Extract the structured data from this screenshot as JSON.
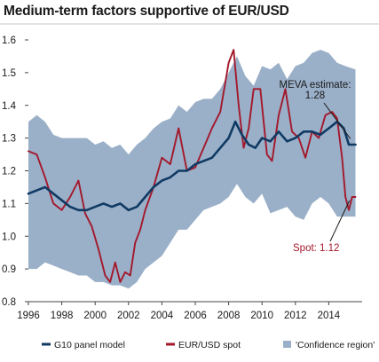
{
  "chart_data": {
    "type": "line",
    "title": "Medium-term factors supportive of EUR/USD",
    "xlabel": "",
    "ylabel": "",
    "xlim": [
      1996,
      2016
    ],
    "ylim": [
      0.8,
      1.6
    ],
    "x_ticks": [
      "1996",
      "1998",
      "2000",
      "2002",
      "2004",
      "2006",
      "2008",
      "2010",
      "2012",
      "2014"
    ],
    "y_ticks": [
      "0.8",
      "0.9",
      "1.0",
      "1.1",
      "1.2",
      "1.3",
      "1.4",
      "1.5",
      "1.6"
    ],
    "grid": false,
    "legend_position": "bottom",
    "colors": {
      "model": "#0f3a63",
      "spot": "#a3182b",
      "band": "#9aafc8"
    },
    "band": {
      "name": "'Confidence region'",
      "x": [
        1996.0,
        1996.5,
        1997.0,
        1997.5,
        1998.0,
        1998.5,
        1999.0,
        1999.5,
        2000.0,
        2000.5,
        2001.0,
        2001.5,
        2002.0,
        2002.5,
        2003.0,
        2003.5,
        2004.0,
        2004.5,
        2005.0,
        2005.5,
        2006.0,
        2006.5,
        2007.0,
        2007.5,
        2008.0,
        2008.5,
        2009.0,
        2009.5,
        2010.0,
        2010.5,
        2011.0,
        2011.5,
        2012.0,
        2012.5,
        2013.0,
        2013.5,
        2014.0,
        2014.5,
        2015.0,
        2015.6
      ],
      "upper": [
        1.35,
        1.37,
        1.35,
        1.31,
        1.3,
        1.3,
        1.3,
        1.3,
        1.28,
        1.29,
        1.27,
        1.28,
        1.25,
        1.28,
        1.3,
        1.33,
        1.35,
        1.36,
        1.4,
        1.38,
        1.41,
        1.42,
        1.42,
        1.45,
        1.5,
        1.55,
        1.49,
        1.46,
        1.52,
        1.51,
        1.53,
        1.48,
        1.52,
        1.53,
        1.56,
        1.57,
        1.56,
        1.53,
        1.52,
        1.51
      ],
      "lower": [
        0.9,
        0.9,
        0.92,
        0.91,
        0.9,
        0.89,
        0.88,
        0.88,
        0.86,
        0.86,
        0.85,
        0.85,
        0.84,
        0.86,
        0.9,
        0.92,
        0.94,
        0.98,
        1.02,
        1.02,
        1.05,
        1.08,
        1.09,
        1.1,
        1.12,
        1.16,
        1.12,
        1.1,
        1.13,
        1.07,
        1.08,
        1.09,
        1.06,
        1.05,
        1.1,
        1.12,
        1.1,
        1.06,
        1.06,
        1.06
      ]
    },
    "series": [
      {
        "name": "G10 panel model",
        "x": [
          1996.0,
          1996.5,
          1997.0,
          1997.5,
          1998.0,
          1998.5,
          1999.0,
          1999.5,
          2000.0,
          2000.5,
          2001.0,
          2001.5,
          2002.0,
          2002.5,
          2003.0,
          2003.5,
          2004.0,
          2004.5,
          2005.0,
          2005.5,
          2006.0,
          2006.5,
          2007.0,
          2007.5,
          2008.0,
          2008.4,
          2008.8,
          2009.2,
          2009.6,
          2010.0,
          2010.5,
          2011.0,
          2011.5,
          2012.0,
          2012.5,
          2013.0,
          2013.5,
          2014.0,
          2014.5,
          2014.9,
          2015.2,
          2015.6
        ],
        "values": [
          1.13,
          1.14,
          1.15,
          1.13,
          1.11,
          1.09,
          1.08,
          1.08,
          1.09,
          1.1,
          1.09,
          1.1,
          1.08,
          1.09,
          1.12,
          1.15,
          1.17,
          1.18,
          1.2,
          1.2,
          1.22,
          1.23,
          1.24,
          1.27,
          1.3,
          1.35,
          1.31,
          1.28,
          1.27,
          1.3,
          1.29,
          1.32,
          1.29,
          1.3,
          1.32,
          1.32,
          1.31,
          1.33,
          1.35,
          1.33,
          1.28,
          1.28
        ]
      },
      {
        "name": "EUR/USD spot",
        "x": [
          1996.0,
          1996.5,
          1997.0,
          1997.5,
          1998.0,
          1998.5,
          1999.0,
          1999.4,
          1999.8,
          2000.2,
          2000.6,
          2000.9,
          2001.2,
          2001.5,
          2001.8,
          2002.1,
          2002.4,
          2002.7,
          2003.0,
          2003.5,
          2004.0,
          2004.5,
          2005.0,
          2005.5,
          2006.0,
          2006.5,
          2007.0,
          2007.5,
          2008.0,
          2008.3,
          2008.6,
          2008.9,
          2009.2,
          2009.5,
          2009.9,
          2010.3,
          2010.6,
          2011.0,
          2011.4,
          2011.8,
          2012.2,
          2012.6,
          2013.0,
          2013.4,
          2013.8,
          2014.2,
          2014.5,
          2014.8,
          2015.0,
          2015.2,
          2015.4,
          2015.6
        ],
        "values": [
          1.26,
          1.25,
          1.18,
          1.1,
          1.08,
          1.12,
          1.17,
          1.07,
          1.03,
          0.96,
          0.88,
          0.86,
          0.92,
          0.86,
          0.89,
          0.88,
          0.98,
          1.02,
          1.08,
          1.15,
          1.24,
          1.22,
          1.33,
          1.2,
          1.21,
          1.27,
          1.33,
          1.38,
          1.53,
          1.57,
          1.4,
          1.27,
          1.33,
          1.45,
          1.45,
          1.25,
          1.23,
          1.37,
          1.45,
          1.32,
          1.3,
          1.24,
          1.32,
          1.3,
          1.37,
          1.38,
          1.36,
          1.24,
          1.12,
          1.08,
          1.12,
          1.12
        ]
      }
    ],
    "annotations": [
      {
        "text": "MEVA estimate:",
        "x": 2015.4,
        "y": 1.29,
        "color": "#1a1a1a"
      },
      {
        "text": "1.28",
        "x": 2015.4,
        "y": 1.29,
        "color": "#1a1a1a"
      },
      {
        "text": "Spot: 1.12",
        "x": 2015.4,
        "y": 1.12,
        "color": "#a3182b"
      }
    ],
    "legend": [
      {
        "label": "G10 panel model",
        "kind": "line",
        "color": "#0f3a63"
      },
      {
        "label": "EUR/USD spot",
        "kind": "line",
        "color": "#a3182b"
      },
      {
        "label": "'Confidence region'",
        "kind": "box",
        "color": "#9aafc8"
      }
    ]
  }
}
